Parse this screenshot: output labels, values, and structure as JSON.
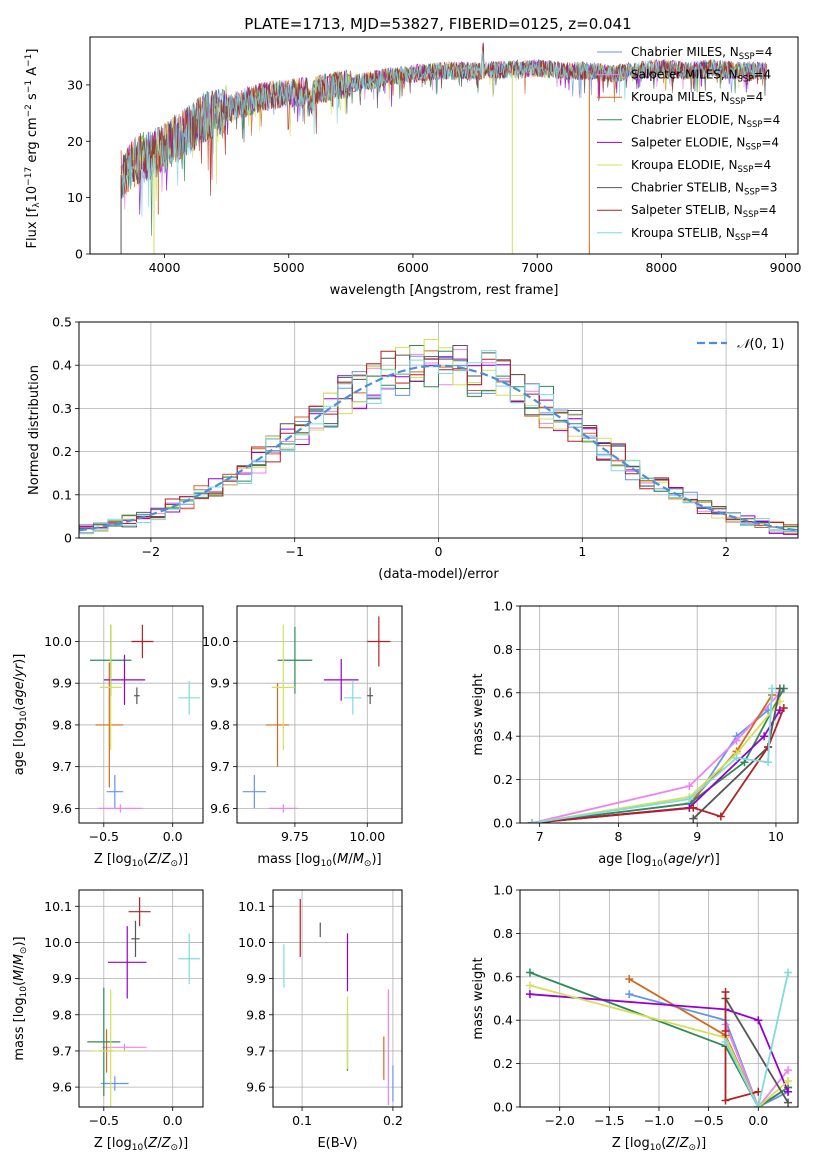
{
  "figure_title": "PLATE=1713, MJD=53827, FIBERID=0125, z=0.041",
  "chart_data": [
    {
      "id": "spectrum",
      "type": "line",
      "title": "PLATE=1713, MJD=53827, FIBERID=0125, z=0.041",
      "xlabel": "wavelength [Angstrom, rest frame]",
      "ylabel": "Flux [f_λ 10^-17 erg cm^-2 s^-1 A^-1]",
      "xlim": [
        3400,
        9100
      ],
      "ylim": [
        0,
        38.5
      ],
      "xticks": [
        4000,
        5000,
        6000,
        7000,
        8000,
        9000
      ],
      "yticks": [
        0,
        10,
        20,
        30
      ],
      "grid": false,
      "legend_position": "top-right",
      "continuum_x": [
        3650,
        3700,
        3800,
        3900,
        4000,
        4100,
        4200,
        4300,
        4400,
        4500,
        4600,
        4800,
        5000,
        5200,
        5400,
        5600,
        5800,
        6000,
        6200,
        6400,
        6600,
        6800,
        7000,
        7200,
        7400,
        7600,
        7800,
        8000,
        8200,
        8400,
        8600,
        8850
      ],
      "continuum_y": [
        14,
        15,
        17,
        17.5,
        19,
        20.5,
        22,
        24,
        25,
        25.5,
        26.5,
        28,
        28.5,
        29,
        30,
        30.5,
        31.5,
        32,
        32.5,
        32.5,
        32.5,
        32.8,
        33,
        32.5,
        32.5,
        32,
        32.5,
        33,
        32.5,
        33,
        32.5,
        32.5
      ],
      "series": [
        {
          "name": "Chabrier MILES, N_SSP=4",
          "color": "#6495ed"
        },
        {
          "name": "Salpeter MILES, N_SSP=4",
          "color": "#ee82ee"
        },
        {
          "name": "Kroupa MILES, N_SSP=4",
          "color": "#d2691e"
        },
        {
          "name": "Chabrier ELODIE, N_SSP=4",
          "color": "#2e8b57"
        },
        {
          "name": "Salpeter ELODIE, N_SSP=4",
          "color": "#9400d3"
        },
        {
          "name": "Kroupa ELODIE, N_SSP=4",
          "color": "#d4e157"
        },
        {
          "name": "Chabrier STELIB, N_SSP=3",
          "color": "#555555"
        },
        {
          "name": "Salpeter STELIB, N_SSP=4",
          "color": "#b22222"
        },
        {
          "name": "Kroupa STELIB, N_SSP=4",
          "color": "#7fdbe0"
        }
      ],
      "drops": [
        {
          "x": 3650,
          "color": "#555555",
          "to": 0
        },
        {
          "x": 3915,
          "color": "#d4e157",
          "to": 0
        },
        {
          "x": 3950,
          "color": "#d2691e",
          "to": 7
        },
        {
          "x": 6800,
          "color": "#d4e157",
          "to": 0
        },
        {
          "x": 7420,
          "color": "#d2691e",
          "to": 0
        }
      ]
    },
    {
      "id": "residuals",
      "type": "line",
      "xlabel": "(data-model)/error",
      "ylabel": "Normed distribution",
      "xlim": [
        -2.5,
        2.5
      ],
      "ylim": [
        0,
        0.5
      ],
      "xticks": [
        -2,
        -1,
        0,
        1,
        2
      ],
      "yticks": [
        0.0,
        0.1,
        0.2,
        0.3,
        0.4,
        0.5
      ],
      "grid": true,
      "legend_position": "top-right",
      "gaussian_label": "N(0, 1)",
      "bin_width": 0.1,
      "bin_start": -2.5
    },
    {
      "id": "age-vs-Z",
      "type": "scatter",
      "xlabel": "Z [log10(Z/Z⊙)]",
      "ylabel": "age [log10(age/yr)]",
      "xlim": [
        -0.68,
        0.22
      ],
      "ylim": [
        9.565,
        10.085
      ],
      "xticks": [
        -0.5,
        0.0
      ],
      "yticks": [
        9.6,
        9.7,
        9.8,
        9.9,
        10.0
      ],
      "grid": true,
      "points": [
        {
          "x": -0.42,
          "y": 9.64,
          "xerr": 0.06,
          "yerr": 0.04,
          "color": "#6495ed"
        },
        {
          "x": -0.38,
          "y": 9.6,
          "xerr": 0.16,
          "yerr": 0.01,
          "color": "#ee82ee"
        },
        {
          "x": -0.46,
          "y": 9.8,
          "xerr": 0.1,
          "yerr": 0.15,
          "color": "#d2691e"
        },
        {
          "x": -0.45,
          "y": 9.955,
          "xerr": 0.15,
          "yerr": 0.085,
          "color": "#2e8b57"
        },
        {
          "x": -0.35,
          "y": 9.908,
          "xerr": 0.15,
          "yerr": 0.06,
          "color": "#9400d3"
        },
        {
          "x": -0.45,
          "y": 9.89,
          "xerr": 0.08,
          "yerr": 0.15,
          "color": "#d4e157"
        },
        {
          "x": -0.26,
          "y": 9.87,
          "xerr": 0.02,
          "yerr": 0.02,
          "color": "#555555"
        },
        {
          "x": -0.22,
          "y": 10.0,
          "xerr": 0.08,
          "yerr": 0.04,
          "color": "#b22222"
        },
        {
          "x": 0.12,
          "y": 9.865,
          "xerr": 0.08,
          "yerr": 0.04,
          "color": "#7fdbe0"
        }
      ]
    },
    {
      "id": "age-vs-mass",
      "type": "scatter",
      "xlabel": "mass [log10(M/M⊙)]",
      "ylabel": "",
      "xlim": [
        9.55,
        10.12
      ],
      "ylim": [
        9.565,
        10.085
      ],
      "xticks": [
        9.75,
        10.0
      ],
      "yticks": [
        9.6,
        9.7,
        9.8,
        9.9,
        10.0
      ],
      "grid": true,
      "points": [
        {
          "x": 9.61,
          "y": 9.64,
          "xerr": 0.04,
          "yerr": 0.04,
          "color": "#6495ed"
        },
        {
          "x": 9.71,
          "y": 9.6,
          "xerr": 0.05,
          "yerr": 0.01,
          "color": "#ee82ee"
        },
        {
          "x": 9.69,
          "y": 9.8,
          "xerr": 0.04,
          "yerr": 0.1,
          "color": "#d2691e"
        },
        {
          "x": 9.75,
          "y": 9.955,
          "xerr": 0.06,
          "yerr": 0.08,
          "color": "#2e8b57"
        },
        {
          "x": 9.91,
          "y": 9.908,
          "xerr": 0.06,
          "yerr": 0.05,
          "color": "#9400d3"
        },
        {
          "x": 9.71,
          "y": 9.89,
          "xerr": 0.04,
          "yerr": 0.15,
          "color": "#d4e157"
        },
        {
          "x": 10.01,
          "y": 9.87,
          "xerr": 0.01,
          "yerr": 0.02,
          "color": "#555555"
        },
        {
          "x": 10.04,
          "y": 10.0,
          "xerr": 0.04,
          "yerr": 0.06,
          "color": "#b22222"
        },
        {
          "x": 9.95,
          "y": 9.865,
          "xerr": 0.03,
          "yerr": 0.04,
          "color": "#7fdbe0"
        }
      ]
    },
    {
      "id": "massweight-vs-age",
      "type": "line",
      "xlabel": "age [log10(age/yr)]",
      "ylabel": "mass weight",
      "xlim": [
        6.75,
        10.28
      ],
      "ylim": [
        0,
        1.0
      ],
      "xticks": [
        7,
        8,
        9,
        10
      ],
      "yticks": [
        0.0,
        0.2,
        0.4,
        0.6,
        0.8,
        1.0
      ],
      "grid": true,
      "series": [
        {
          "color": "#6495ed",
          "x": [
            6.9,
            8.9,
            9.5,
            9.9
          ],
          "y": [
            0.0,
            0.07,
            0.4,
            0.52
          ]
        },
        {
          "color": "#ee82ee",
          "x": [
            6.9,
            8.9,
            9.5,
            10.05
          ],
          "y": [
            0.0,
            0.17,
            0.38,
            0.6
          ]
        },
        {
          "color": "#d2691e",
          "x": [
            6.9,
            8.9,
            9.5,
            9.95
          ],
          "y": [
            0.0,
            0.09,
            0.33,
            0.59
          ]
        },
        {
          "color": "#2e8b57",
          "x": [
            6.9,
            8.9,
            9.6,
            10.1
          ],
          "y": [
            0.0,
            0.09,
            0.28,
            0.62
          ]
        },
        {
          "color": "#9400d3",
          "x": [
            6.9,
            8.9,
            9.85,
            10.05
          ],
          "y": [
            0.0,
            0.07,
            0.4,
            0.52
          ]
        },
        {
          "color": "#d4e157",
          "x": [
            6.9,
            8.9,
            9.5,
            10.05
          ],
          "y": [
            0.0,
            0.12,
            0.32,
            0.56
          ]
        },
        {
          "color": "#555555",
          "x": [
            8.95,
            9.9,
            10.05
          ],
          "y": [
            0.02,
            0.35,
            0.62
          ]
        },
        {
          "color": "#b22222",
          "x": [
            6.9,
            8.95,
            9.3,
            9.9,
            10.1
          ],
          "y": [
            0.0,
            0.07,
            0.03,
            0.35,
            0.53
          ]
        },
        {
          "color": "#7fdbe0",
          "x": [
            6.9,
            8.9,
            9.5,
            9.9,
            9.95
          ],
          "y": [
            0.0,
            0.11,
            0.3,
            0.28,
            0.62
          ]
        }
      ]
    },
    {
      "id": "mass-vs-Z",
      "type": "scatter",
      "xlabel": "Z [log10(Z/Z⊙)]",
      "ylabel": "mass [log10(M/M⊙)]",
      "xlim": [
        -0.68,
        0.22
      ],
      "ylim": [
        9.545,
        10.145
      ],
      "xticks": [
        -0.5,
        0.0
      ],
      "yticks": [
        9.6,
        9.7,
        9.8,
        9.9,
        10.0,
        10.1
      ],
      "grid": true,
      "points": [
        {
          "x": -0.42,
          "y": 9.61,
          "xerr": 0.1,
          "yerr": 0.02,
          "color": "#6495ed"
        },
        {
          "x": -0.35,
          "y": 9.71,
          "xerr": 0.16,
          "yerr": 0.01,
          "color": "#ee82ee"
        },
        {
          "x": -0.48,
          "y": 9.7,
          "xerr": 0.05,
          "yerr": 0.06,
          "color": "#d2691e"
        },
        {
          "x": -0.5,
          "y": 9.725,
          "xerr": 0.12,
          "yerr": 0.15,
          "color": "#2e8b57"
        },
        {
          "x": -0.33,
          "y": 9.945,
          "xerr": 0.14,
          "yerr": 0.1,
          "color": "#9400d3"
        },
        {
          "x": -0.45,
          "y": 9.7,
          "xerr": 0.13,
          "yerr": 0.17,
          "color": "#d4e157"
        },
        {
          "x": -0.27,
          "y": 10.01,
          "xerr": 0.03,
          "yerr": 0.05,
          "color": "#555555"
        },
        {
          "x": -0.24,
          "y": 10.085,
          "xerr": 0.08,
          "yerr": 0.04,
          "color": "#b22222"
        },
        {
          "x": 0.12,
          "y": 9.955,
          "xerr": 0.08,
          "yerr": 0.07,
          "color": "#7fdbe0"
        }
      ]
    },
    {
      "id": "mass-vs-ebv",
      "type": "scatter",
      "xlabel": "E(B-V)",
      "ylabel": "",
      "xlim": [
        0.068,
        0.21
      ],
      "ylim": [
        9.545,
        10.145
      ],
      "xticks": [
        0.1,
        0.2
      ],
      "yticks": [
        9.6,
        9.7,
        9.8,
        9.9,
        10.0,
        10.1
      ],
      "grid": true,
      "points": [
        {
          "x": 0.2,
          "y": 9.61,
          "yerr": 0.05,
          "color": "#6495ed"
        },
        {
          "x": 0.195,
          "y": 9.71,
          "yerr": 0.16,
          "color": "#ee82ee"
        },
        {
          "x": 0.19,
          "y": 9.68,
          "yerr": 0.06,
          "color": "#d2691e"
        },
        {
          "x": 0.15,
          "y": 9.725,
          "yerr": 0.08,
          "color": "#2e8b57"
        },
        {
          "x": 0.15,
          "y": 9.945,
          "yerr": 0.08,
          "color": "#9400d3"
        },
        {
          "x": 0.15,
          "y": 9.75,
          "yerr": 0.1,
          "color": "#d4e157"
        },
        {
          "x": 0.12,
          "y": 10.035,
          "yerr": 0.02,
          "color": "#555555"
        },
        {
          "x": 0.098,
          "y": 10.04,
          "yerr": 0.08,
          "color": "#b22222"
        },
        {
          "x": 0.08,
          "y": 9.935,
          "yerr": 0.06,
          "color": "#7fdbe0"
        }
      ]
    },
    {
      "id": "massweight-vs-Z",
      "type": "line",
      "xlabel": "Z [log10(Z/Z⊙)]",
      "ylabel": "mass weight",
      "xlim": [
        -2.4,
        0.4
      ],
      "ylim": [
        0,
        1.0
      ],
      "xticks": [
        -2.0,
        -1.5,
        -1.0,
        -0.5,
        0.0
      ],
      "yticks": [
        0.0,
        0.2,
        0.4,
        0.6,
        0.8,
        1.0
      ],
      "grid": true,
      "series": [
        {
          "color": "#6495ed",
          "x": [
            -1.3,
            -0.33,
            0.0,
            0.3
          ],
          "y": [
            0.52,
            0.4,
            0.0,
            0.07
          ]
        },
        {
          "color": "#ee82ee",
          "x": [
            -0.33,
            0.0,
            0.3
          ],
          "y": [
            0.38,
            0.0,
            0.17
          ]
        },
        {
          "color": "#d2691e",
          "x": [
            -1.3,
            -0.33,
            0.0,
            0.3
          ],
          "y": [
            0.59,
            0.33,
            0.0,
            0.09
          ]
        },
        {
          "color": "#2e8b57",
          "x": [
            -2.3,
            -0.33,
            0.0,
            0.3
          ],
          "y": [
            0.62,
            0.28,
            0.0,
            0.09
          ]
        },
        {
          "color": "#9400d3",
          "x": [
            -2.3,
            -0.33,
            0.0,
            0.3
          ],
          "y": [
            0.52,
            0.45,
            0.4,
            0.07
          ]
        },
        {
          "color": "#d4e157",
          "x": [
            -2.3,
            -0.33,
            0.0,
            0.3
          ],
          "y": [
            0.56,
            0.32,
            0.0,
            0.12
          ]
        },
        {
          "color": "#555555",
          "x": [
            -0.33,
            0.3
          ],
          "y": [
            0.5,
            0.02
          ]
        },
        {
          "color": "#b22222",
          "x": [
            -0.33,
            -0.33,
            -0.33,
            0.0
          ],
          "y": [
            0.53,
            0.35,
            0.03,
            0.07
          ]
        },
        {
          "color": "#7fdbe0",
          "x": [
            -0.33,
            0.0,
            0.3
          ],
          "y": [
            0.3,
            0.0,
            0.62
          ]
        }
      ]
    }
  ]
}
